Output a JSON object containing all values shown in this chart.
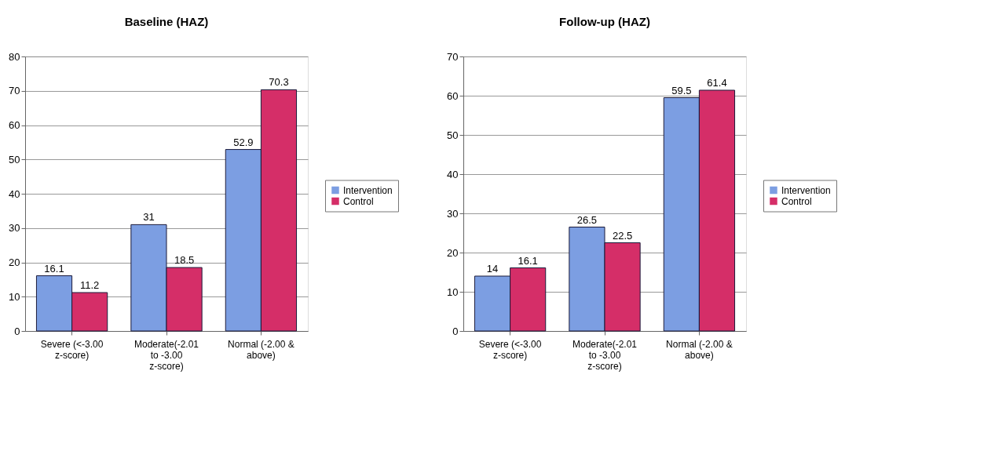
{
  "chart_data": [
    {
      "type": "bar",
      "title": "Baseline (HAZ)",
      "categories": [
        "Severe (<-3.00 z-score)",
        "Moderate(-2.01 to -3.00 z-score)",
        "Normal (-2.00 & above)"
      ],
      "series": [
        {
          "name": "Intervention",
          "color": "#7c9ee2",
          "values": [
            16.1,
            31,
            52.9
          ]
        },
        {
          "name": "Control",
          "color": "#d52e68",
          "values": [
            11.2,
            18.5,
            70.3
          ]
        }
      ],
      "ylim": [
        0,
        80
      ],
      "yticks": [
        0,
        10,
        20,
        30,
        40,
        50,
        60,
        70,
        80
      ],
      "grid": "y",
      "legend": "right",
      "data_labels": true
    },
    {
      "type": "bar",
      "title": "Follow-up (HAZ)",
      "categories": [
        "Severe (<-3.00 z-score)",
        "Moderate(-2.01 to -3.00 z-score)",
        "Normal (-2.00 & above)"
      ],
      "series": [
        {
          "name": "Intervention",
          "color": "#7c9ee2",
          "values": [
            14,
            26.5,
            59.5
          ]
        },
        {
          "name": "Control",
          "color": "#d52e68",
          "values": [
            16.1,
            22.5,
            61.4
          ]
        }
      ],
      "ylim": [
        0,
        70
      ],
      "yticks": [
        0,
        10,
        20,
        30,
        40,
        50,
        60,
        70
      ],
      "grid": "y",
      "legend": "right",
      "data_labels": true
    }
  ]
}
